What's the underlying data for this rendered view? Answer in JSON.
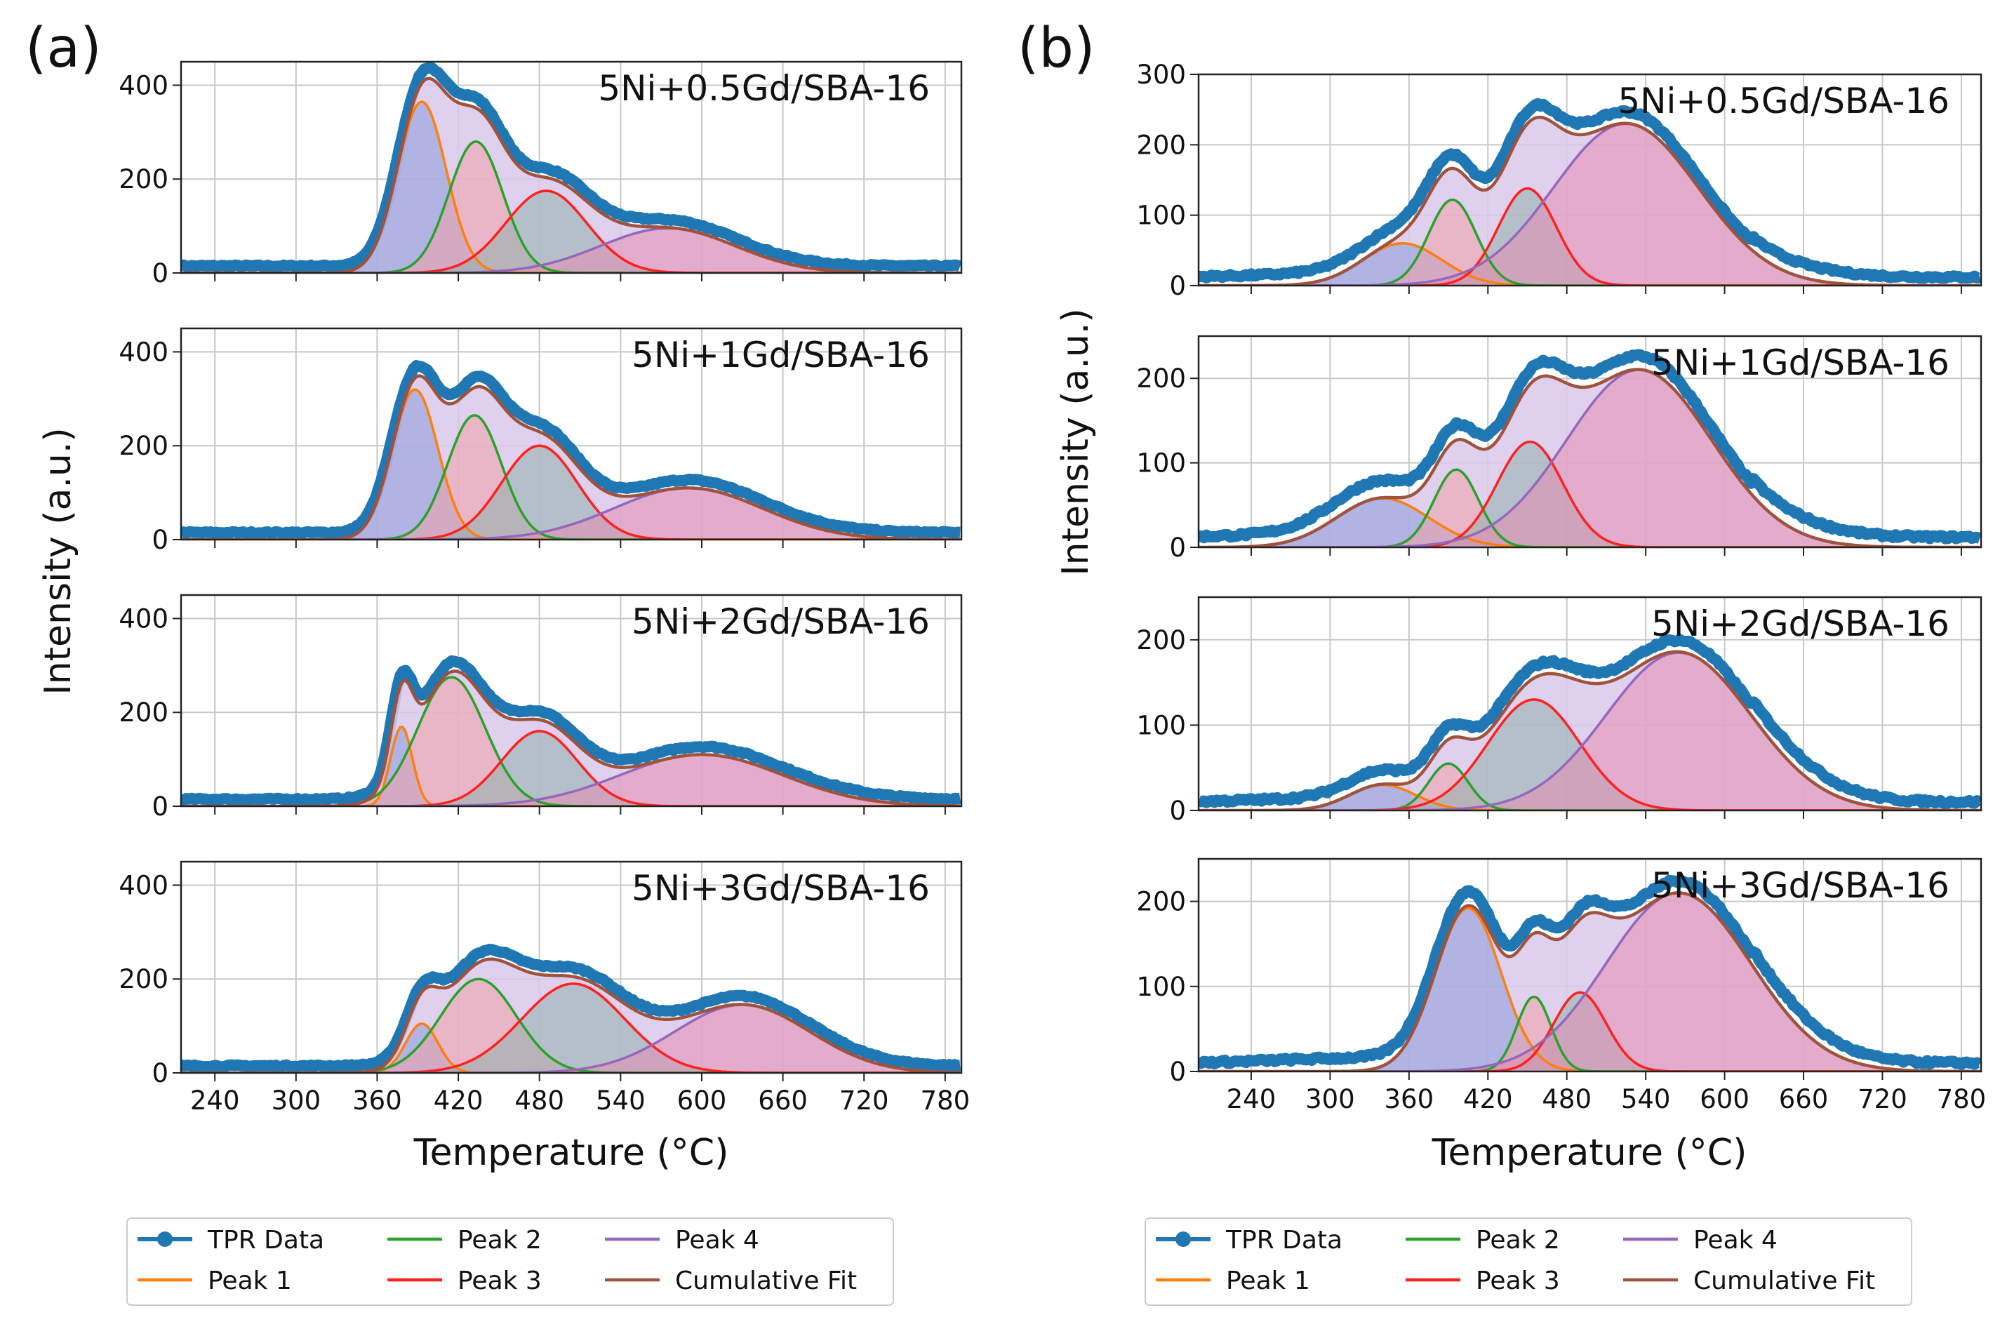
{
  "chart_data": [
    {
      "type": "line",
      "panel_label": "(a)",
      "xlabel": "Temperature (°C)",
      "ylabel": "Intensity (a.u.)",
      "xlim": [
        215,
        792
      ],
      "xticks": [
        "240",
        "300",
        "360",
        "420",
        "480",
        "540",
        "600",
        "660",
        "720",
        "780"
      ],
      "grid": true,
      "subplots": [
        {
          "title": "5Ni+0.5Gd/SBA-16",
          "ylim": [
            0,
            450
          ],
          "yticks": [
            "0",
            "200",
            "400"
          ],
          "baseline": 15,
          "peaks": [
            {
              "name": "Peak 1",
              "center": 393,
              "amplitude": 365,
              "width": 18
            },
            {
              "name": "Peak 2",
              "center": 433,
              "amplitude": 280,
              "width": 20
            },
            {
              "name": "Peak 3",
              "center": 485,
              "amplitude": 175,
              "width": 30
            },
            {
              "name": "Peak 4",
              "center": 575,
              "amplitude": 95,
              "width": 50
            }
          ]
        },
        {
          "title": "5Ni+1Gd/SBA-16",
          "ylim": [
            0,
            450
          ],
          "yticks": [
            "0",
            "200",
            "400"
          ],
          "baseline": 15,
          "peaks": [
            {
              "name": "Peak 1",
              "center": 388,
              "amplitude": 320,
              "width": 17
            },
            {
              "name": "Peak 2",
              "center": 432,
              "amplitude": 265,
              "width": 20
            },
            {
              "name": "Peak 3",
              "center": 480,
              "amplitude": 200,
              "width": 28
            },
            {
              "name": "Peak 4",
              "center": 590,
              "amplitude": 110,
              "width": 55
            }
          ]
        },
        {
          "title": "5Ni+2Gd/SBA-16",
          "ylim": [
            0,
            450
          ],
          "yticks": [
            "0",
            "200",
            "400"
          ],
          "baseline": 15,
          "peaks": [
            {
              "name": "Peak 1",
              "center": 378,
              "amplitude": 170,
              "width": 8
            },
            {
              "name": "Peak 2",
              "center": 415,
              "amplitude": 275,
              "width": 25
            },
            {
              "name": "Peak 3",
              "center": 480,
              "amplitude": 160,
              "width": 28
            },
            {
              "name": "Peak 4",
              "center": 600,
              "amplitude": 110,
              "width": 60
            }
          ]
        },
        {
          "title": "5Ni+3Gd/SBA-16",
          "ylim": [
            0,
            450
          ],
          "yticks": [
            "0",
            "200",
            "400"
          ],
          "baseline": 15,
          "peaks": [
            {
              "name": "Peak 1",
              "center": 393,
              "amplitude": 105,
              "width": 12
            },
            {
              "name": "Peak 2",
              "center": 435,
              "amplitude": 200,
              "width": 28
            },
            {
              "name": "Peak 3",
              "center": 505,
              "amplitude": 190,
              "width": 38
            },
            {
              "name": "Peak 4",
              "center": 630,
              "amplitude": 145,
              "width": 50
            }
          ]
        }
      ]
    },
    {
      "type": "line",
      "panel_label": "(b)",
      "xlabel": "Temperature (°C)",
      "ylabel": "Intensity (a.u.)",
      "xlim": [
        200,
        795
      ],
      "xticks": [
        "240",
        "300",
        "360",
        "420",
        "480",
        "540",
        "600",
        "660",
        "720",
        "780"
      ],
      "grid": true,
      "subplots": [
        {
          "title": "5Ni+0.5Gd/SBA-16",
          "ylim": [
            0,
            300
          ],
          "yticks": [
            "0",
            "100",
            "200",
            "300"
          ],
          "baseline": 12,
          "peaks": [
            {
              "name": "Peak 1",
              "center": 355,
              "amplitude": 60,
              "width": 30
            },
            {
              "name": "Peak 2",
              "center": 393,
              "amplitude": 122,
              "width": 18
            },
            {
              "name": "Peak 3",
              "center": 450,
              "amplitude": 138,
              "width": 22
            },
            {
              "name": "Peak 4",
              "center": 525,
              "amplitude": 230,
              "width": 55
            }
          ]
        },
        {
          "title": "5Ni+1Gd/SBA-16",
          "ylim": [
            0,
            250
          ],
          "yticks": [
            "0",
            "100",
            "200"
          ],
          "baseline": 12,
          "peaks": [
            {
              "name": "Peak 1",
              "center": 340,
              "amplitude": 58,
              "width": 35
            },
            {
              "name": "Peak 2",
              "center": 396,
              "amplitude": 92,
              "width": 17
            },
            {
              "name": "Peak 3",
              "center": 452,
              "amplitude": 125,
              "width": 25
            },
            {
              "name": "Peak 4",
              "center": 535,
              "amplitude": 210,
              "width": 55
            }
          ]
        },
        {
          "title": "5Ni+2Gd/SBA-16",
          "ylim": [
            0,
            250
          ],
          "yticks": [
            "0",
            "100",
            "200"
          ],
          "baseline": 10,
          "peaks": [
            {
              "name": "Peak 1",
              "center": 340,
              "amplitude": 30,
              "width": 25
            },
            {
              "name": "Peak 2",
              "center": 390,
              "amplitude": 55,
              "width": 15
            },
            {
              "name": "Peak 3",
              "center": 455,
              "amplitude": 130,
              "width": 35
            },
            {
              "name": "Peak 4",
              "center": 565,
              "amplitude": 185,
              "width": 55
            }
          ]
        },
        {
          "title": "5Ni+3Gd/SBA-16",
          "ylim": [
            0,
            250
          ],
          "yticks": [
            "0",
            "100",
            "200"
          ],
          "baseline": 10,
          "peaks": [
            {
              "name": "Peak 1",
              "center": 405,
              "amplitude": 192,
              "width": 25
            },
            {
              "name": "Peak 2",
              "center": 455,
              "amplitude": 88,
              "width": 13
            },
            {
              "name": "Peak 3",
              "center": 490,
              "amplitude": 93,
              "width": 20
            },
            {
              "name": "Peak 4",
              "center": 565,
              "amplitude": 210,
              "width": 55
            }
          ]
        }
      ]
    }
  ],
  "legend": {
    "placement": "bottom",
    "entries": [
      "TPR Data",
      "Peak 2",
      "Peak 4",
      "Peak 1",
      "Peak 3",
      "Cumulative Fit"
    ]
  },
  "colors": {
    "data": "#1f77b4",
    "peak1": "#ff7f0e",
    "peak2": "#2ca02c",
    "peak3": "#ff2020",
    "peak4": "#9467bd",
    "cumulative": "#a0523d",
    "fill_total": "#d9c8ea",
    "fill1": "#8a9ad8",
    "fill2": "#f0a0a8",
    "fill3": "#8fb0ac",
    "fill4": "#e58cb0"
  }
}
